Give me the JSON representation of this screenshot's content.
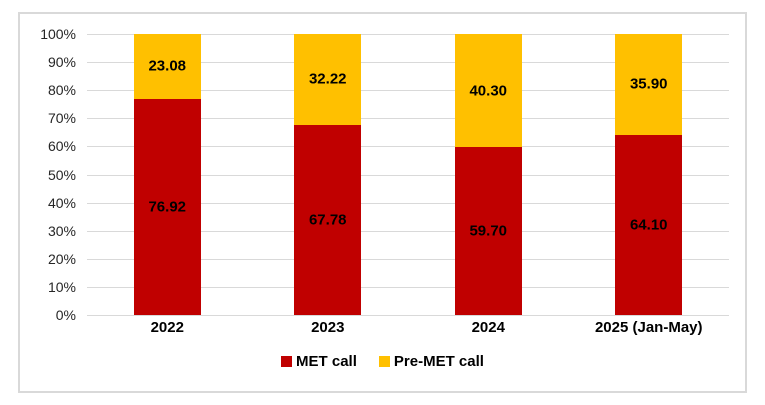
{
  "chart_data": {
    "type": "bar",
    "variant": "stacked-percent-column",
    "categories": [
      "2022",
      "2023",
      "2024",
      "2025 (Jan-May)"
    ],
    "series": [
      {
        "name": "MET call",
        "color": "#c00000",
        "values": [
          76.92,
          67.78,
          59.7,
          64.1
        ],
        "labels": [
          "76.92",
          "67.78",
          "59.70",
          "64.10"
        ]
      },
      {
        "name": "Pre-MET call",
        "color": "#ffc000",
        "values": [
          23.08,
          32.22,
          40.3,
          35.9
        ],
        "labels": [
          "23.08",
          "32.22",
          "40.30",
          "35.90"
        ]
      }
    ],
    "title": "",
    "xlabel": "",
    "ylabel": "",
    "ylim": [
      0,
      100
    ],
    "y_ticks": [
      "0%",
      "10%",
      "20%",
      "30%",
      "40%",
      "50%",
      "60%",
      "70%",
      "80%",
      "90%",
      "100%"
    ],
    "grid": true,
    "gridline_color": "#d9d9d9",
    "frame_border_color": "#d9d9d9",
    "data_label_color": "#000000",
    "legend_position": "bottom-center"
  }
}
